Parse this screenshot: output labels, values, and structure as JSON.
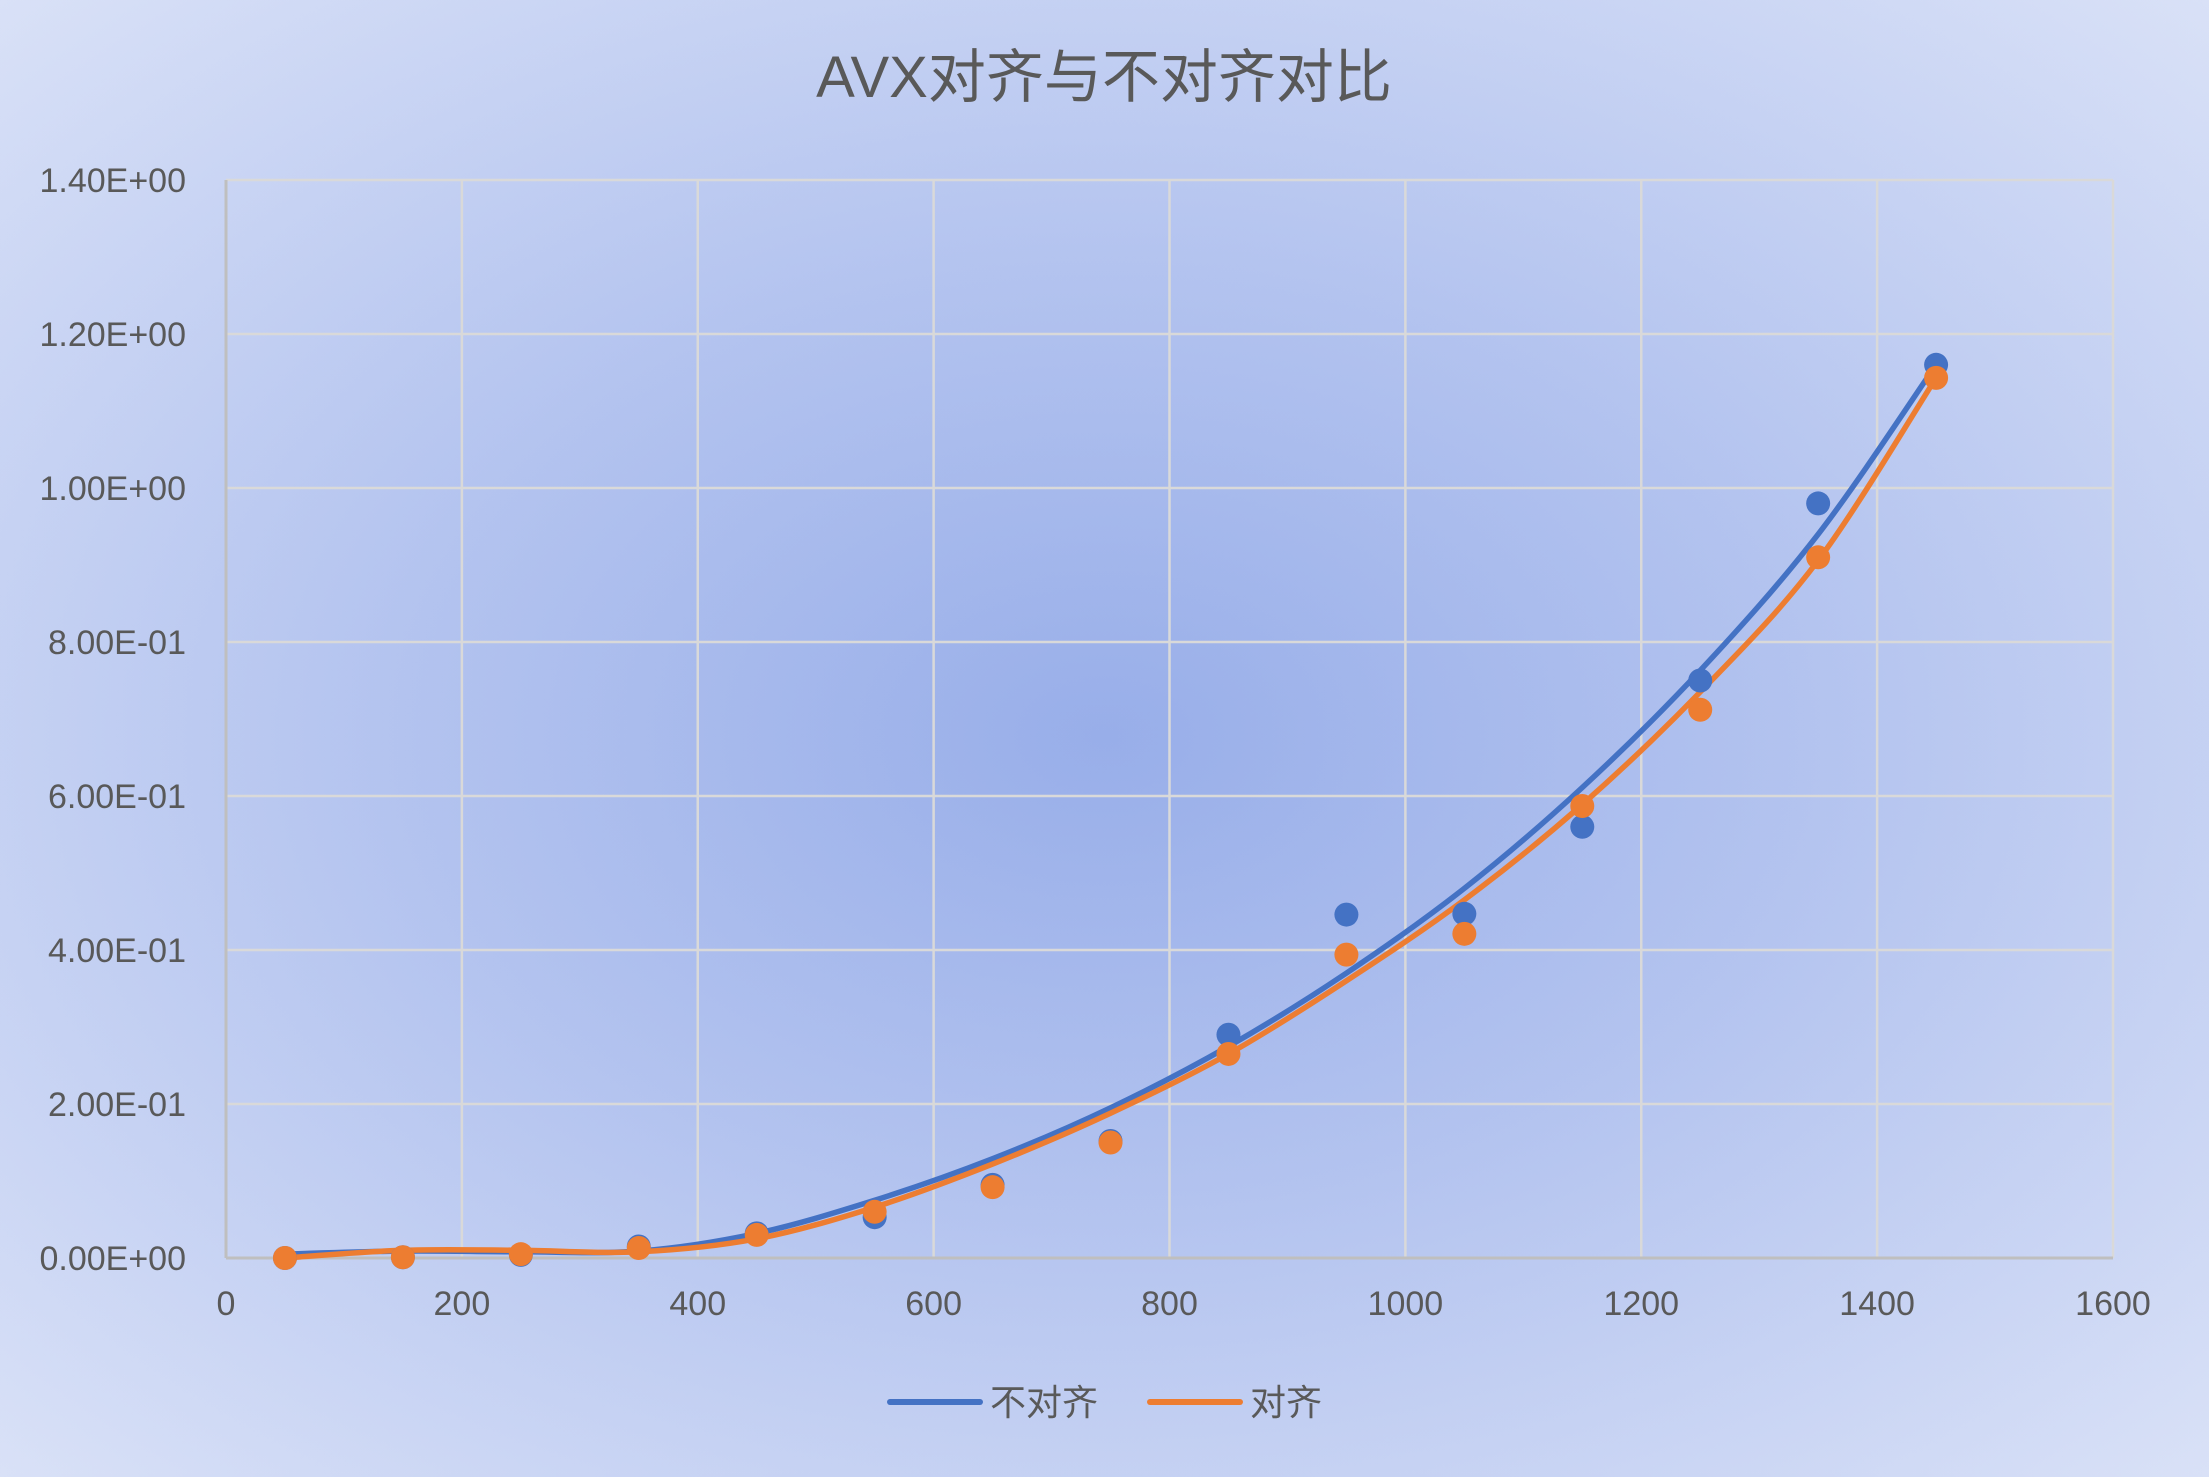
{
  "chart_data": {
    "type": "scatter",
    "title": "AVX对齐与不对齐对比",
    "xlim": [
      0,
      1600
    ],
    "ylim": [
      0,
      1.4
    ],
    "x_ticks": [
      0,
      200,
      400,
      600,
      800,
      1000,
      1200,
      1400,
      1600
    ],
    "x_tick_labels": [
      "0",
      "200",
      "400",
      "600",
      "800",
      "1000",
      "1200",
      "1400",
      "1600"
    ],
    "y_ticks": [
      0,
      0.2,
      0.4,
      0.6,
      0.8,
      1.0,
      1.2,
      1.4
    ],
    "y_tick_labels": [
      "0.00E+00",
      "2.00E-01",
      "4.00E-01",
      "6.00E-01",
      "8.00E-01",
      "1.00E+00",
      "1.20E+00",
      "1.40E+00"
    ],
    "grid": true,
    "legend": "bottom",
    "series": [
      {
        "name": "不对齐",
        "color": "#4472c4",
        "points": [
          [
            50,
            0.0
          ],
          [
            150,
            0.001
          ],
          [
            250,
            0.004
          ],
          [
            350,
            0.015
          ],
          [
            450,
            0.032
          ],
          [
            550,
            0.053
          ],
          [
            650,
            0.095
          ],
          [
            750,
            0.152
          ],
          [
            850,
            0.29
          ],
          [
            950,
            0.446
          ],
          [
            1050,
            0.447
          ],
          [
            1150,
            0.56
          ],
          [
            1250,
            0.75
          ],
          [
            1350,
            0.98
          ],
          [
            1450,
            1.16
          ]
        ],
        "trend": [
          [
            50,
            0.005
          ],
          [
            150,
            0.009
          ],
          [
            250,
            0.008
          ],
          [
            350,
            0.009
          ],
          [
            450,
            0.032
          ],
          [
            550,
            0.075
          ],
          [
            650,
            0.129
          ],
          [
            750,
            0.195
          ],
          [
            850,
            0.275
          ],
          [
            950,
            0.37
          ],
          [
            1050,
            0.48
          ],
          [
            1150,
            0.611
          ],
          [
            1250,
            0.763
          ],
          [
            1350,
            0.94
          ],
          [
            1450,
            1.16
          ]
        ]
      },
      {
        "name": "对齐",
        "color": "#ed7d31",
        "points": [
          [
            50,
            0.0
          ],
          [
            150,
            0.001
          ],
          [
            250,
            0.005
          ],
          [
            350,
            0.013
          ],
          [
            450,
            0.03
          ],
          [
            550,
            0.06
          ],
          [
            650,
            0.092
          ],
          [
            750,
            0.15
          ],
          [
            850,
            0.265
          ],
          [
            950,
            0.394
          ],
          [
            1050,
            0.421
          ],
          [
            1150,
            0.587
          ],
          [
            1250,
            0.712
          ],
          [
            1350,
            0.91
          ],
          [
            1450,
            1.143
          ]
        ],
        "trend": [
          [
            50,
            0.0
          ],
          [
            150,
            0.01
          ],
          [
            250,
            0.01
          ],
          [
            350,
            0.008
          ],
          [
            450,
            0.025
          ],
          [
            550,
            0.066
          ],
          [
            650,
            0.122
          ],
          [
            750,
            0.188
          ],
          [
            850,
            0.265
          ],
          [
            950,
            0.36
          ],
          [
            1050,
            0.465
          ],
          [
            1150,
            0.589
          ],
          [
            1250,
            0.735
          ],
          [
            1350,
            0.906
          ],
          [
            1450,
            1.143
          ]
        ]
      }
    ]
  }
}
